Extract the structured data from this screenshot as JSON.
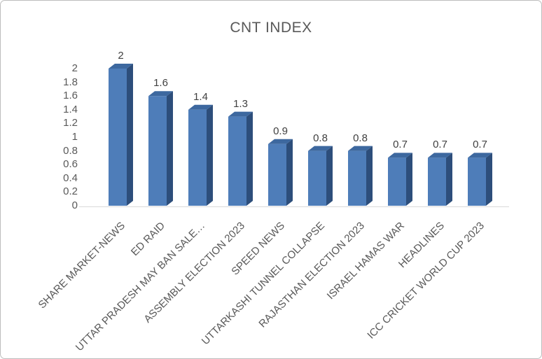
{
  "title": "CNT INDEX",
  "colors": {
    "bar_front": "#4e7db9",
    "bar_top": "#3d689f",
    "bar_side": "#2d4e7b",
    "axis_line": "#d9d9d9",
    "title_text": "#595959",
    "axis_text": "#595959",
    "data_label_text": "#404040",
    "frame_border": "#bdbdbd"
  },
  "chart_data": {
    "type": "bar",
    "title": "CNT INDEX",
    "categories": [
      "SHARE MARKET-NEWS",
      "ED RAID",
      "UTTAR PRADESH MAY BAN SALE…",
      "ASSEMBLY ELECTION 2023",
      "SPEED NEWS",
      "UTTARKASHI TUNNEL COLLAPSE",
      "RAJASTHAN ELECTION 2023",
      "ISRAEL HAMAS WAR",
      "HEADLINES",
      "ICC CRICKET WORLD CUP 2023"
    ],
    "values": [
      2,
      1.6,
      1.4,
      1.3,
      0.9,
      0.8,
      0.8,
      0.7,
      0.7,
      0.7
    ],
    "data_labels": [
      "2",
      "1.6",
      "1.4",
      "1.3",
      "0.9",
      "0.8",
      "0.8",
      "0.7",
      "0.7",
      "0.7"
    ],
    "xlabel": "",
    "ylabel": "",
    "ylim": [
      0,
      2
    ],
    "y_ticks": [
      "2",
      "1.8",
      "1.6",
      "1.4",
      "1.2",
      "1",
      "0.8",
      "0.6",
      "0.4",
      "0.2",
      "0"
    ],
    "grid": false,
    "legend": "none",
    "style": "3d-column",
    "category_label_rotation_deg": -45
  }
}
